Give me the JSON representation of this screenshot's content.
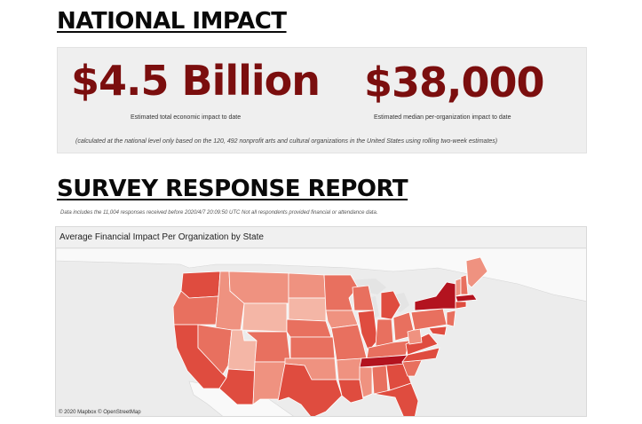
{
  "national": {
    "heading": "NATIONAL IMPACT",
    "stat_total": {
      "value": "$4.5 Billion",
      "caption": "Estimated total economic impact to date"
    },
    "stat_median": {
      "value": "$38,000",
      "caption": "Estimated median per-organization impact to date"
    },
    "footnote": "(calculated at the national level only based on the 120, 492 nonprofit arts and cultural organizations in the United States using rolling two-week estimates)"
  },
  "survey": {
    "heading": "SURVEY RESPONSE REPORT",
    "data_note": "Data includes the 11,004 responses  received before 2020/4/7 20:09:50 UTC  Not all respondents provided  financial or attendance data."
  },
  "map": {
    "title": "Average Financial Impact Per Organization by State",
    "attribution": "© 2020 Mapbox © OpenStreetMap",
    "colors": {
      "background": "#ececec",
      "land": "#f9f9f9",
      "water": "#e4e4e4",
      "lightest": "#f4b6a6",
      "light": "#ef9280",
      "mid": "#e8705f",
      "strong": "#df4c3f",
      "darkest": "#b3131f"
    }
  }
}
